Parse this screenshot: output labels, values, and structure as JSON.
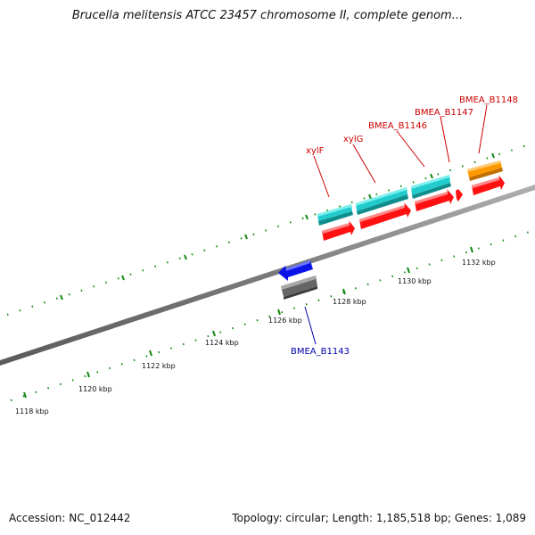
{
  "title": "Brucella melitensis ATCC 23457 chromosome II, complete genom...",
  "footer": {
    "accession": "Accession: NC_012442",
    "summary": "Topology: circular; Length: 1,185,518 bp; Genes: 1,089"
  },
  "ticks": [
    "1118 kbp",
    "1120 kbp",
    "1122 kbp",
    "1124 kbp",
    "1126 kbp",
    "1128 kbp",
    "1130 kbp",
    "1132 kbp"
  ],
  "genes": [
    {
      "name": "xylF",
      "color": "#cc0000"
    },
    {
      "name": "xylG",
      "color": "#cc0000"
    },
    {
      "name": "BMEA_B1146",
      "color": "#cc0000"
    },
    {
      "name": "BMEA_B1147",
      "color": "#cc0000"
    },
    {
      "name": "BMEA_B1148",
      "color": "#cc0000"
    },
    {
      "name": "BMEA_B1143",
      "color": "#0000aa"
    }
  ],
  "colors": {
    "backbone": "#808080",
    "tick": "#118811",
    "cds_forward": "#ff1111",
    "gene_forward": "#22cccc",
    "cds_reverse": "#0a14e6",
    "gene_reverse": "#666666",
    "feature_orange": "#ff9900"
  }
}
